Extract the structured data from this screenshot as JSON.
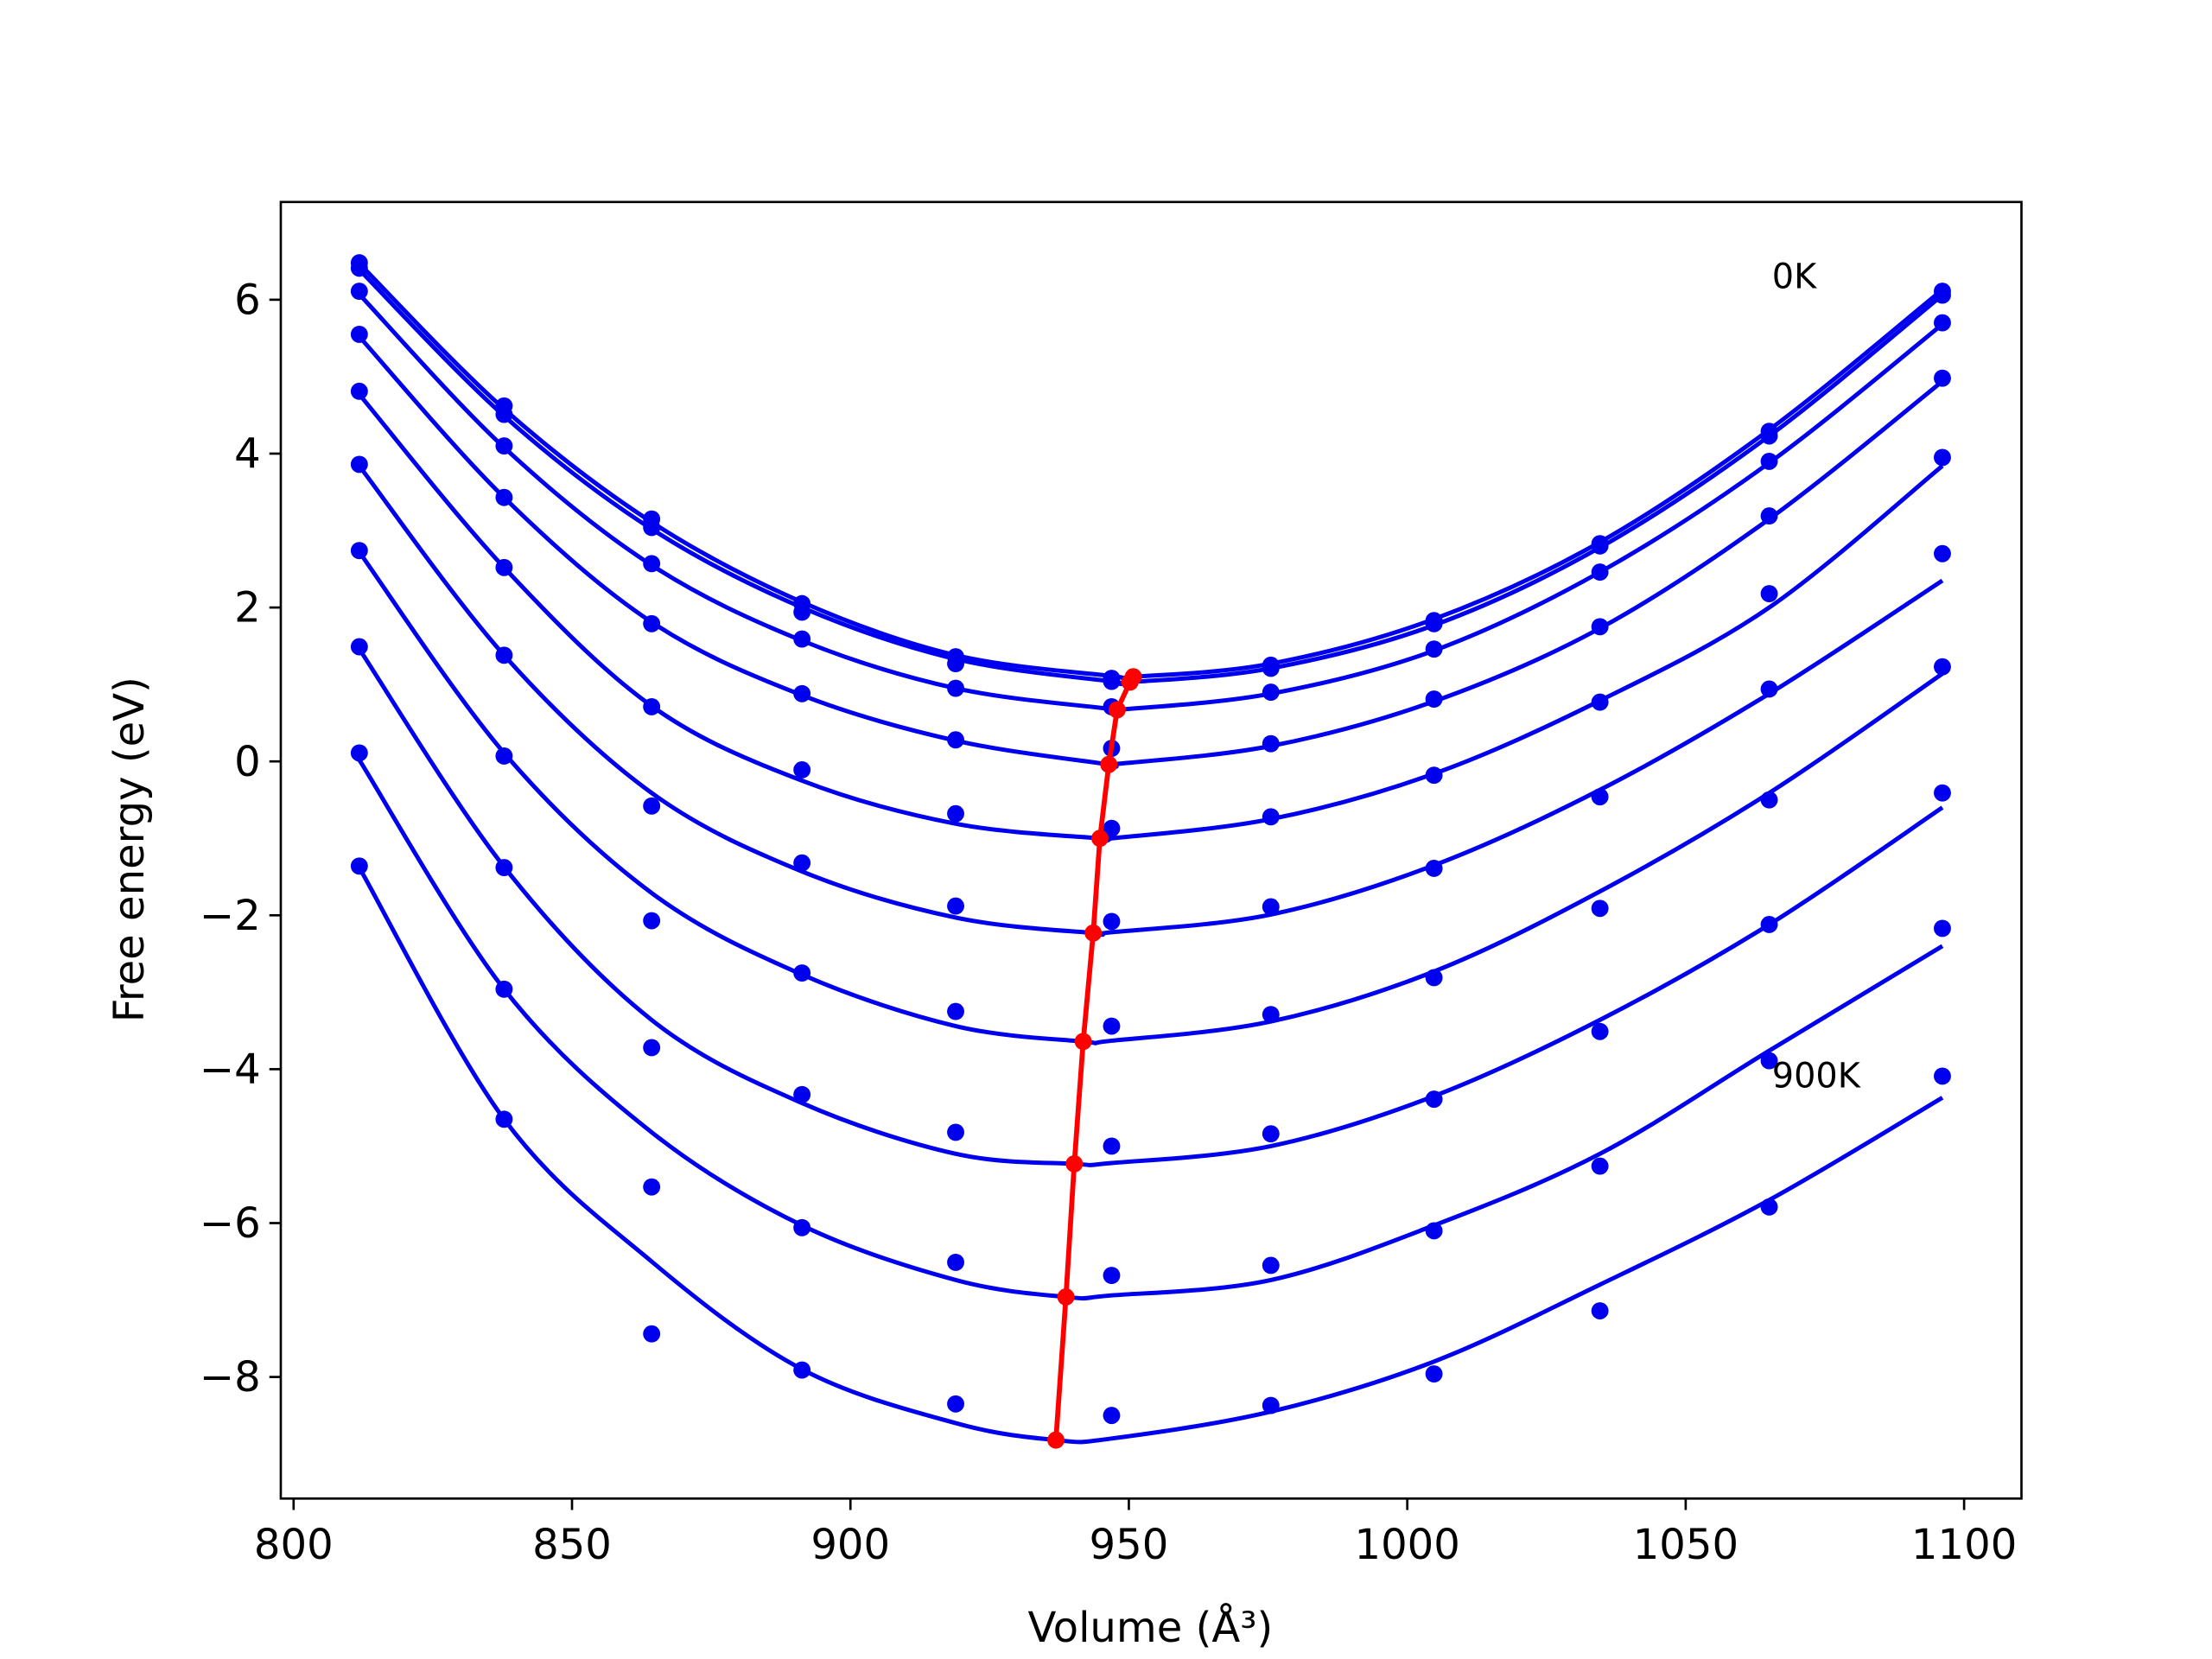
{
  "chart_data": {
    "type": "scatter",
    "xlabel": "Volume (Å³)",
    "ylabel": "Free energy (eV)",
    "xlim": [
      797.7,
      1110.3
    ],
    "ylim": [
      -9.58,
      7.27
    ],
    "xticks": [
      800,
      850,
      900,
      950,
      1000,
      1050,
      1100
    ],
    "yticks": [
      {
        "value": -8,
        "label": "−8"
      },
      {
        "value": -6,
        "label": "−6"
      },
      {
        "value": -4,
        "label": "−4"
      },
      {
        "value": -2,
        "label": "−2"
      },
      0,
      2,
      4,
      6
    ],
    "x": [
      811.8,
      837.8,
      864.3,
      891.3,
      918.9,
      946.9,
      975.5,
      1004.8,
      1034.6,
      1065.0,
      1096.1
    ],
    "series": [
      {
        "color": "#0000ee",
        "values": [
          6.48,
          4.62,
          3.15,
          2.05,
          1.36,
          1.08,
          1.25,
          1.83,
          2.83,
          4.29,
          6.11
        ]
      },
      {
        "color": "#0000ee",
        "values": [
          6.41,
          4.51,
          3.04,
          1.94,
          1.27,
          1.04,
          1.21,
          1.79,
          2.8,
          4.23,
          6.06
        ]
      },
      {
        "color": "#0000ee",
        "values": [
          6.11,
          4.1,
          2.57,
          1.59,
          0.95,
          0.71,
          0.9,
          1.46,
          2.46,
          3.9,
          5.7
        ]
      },
      {
        "color": "#0000ee",
        "values": [
          5.55,
          3.43,
          1.79,
          0.88,
          0.28,
          0.17,
          0.23,
          0.81,
          1.75,
          3.19,
          4.98
        ]
      },
      {
        "color": "#0000ee",
        "values": [
          4.81,
          2.52,
          0.71,
          -0.11,
          -0.68,
          -0.87,
          -0.72,
          -0.18,
          0.77,
          2.18,
          3.95
        ]
      },
      {
        "color": "#0000ee",
        "values": [
          3.86,
          1.38,
          -0.58,
          -1.32,
          -1.88,
          -2.08,
          -1.89,
          -1.39,
          -0.46,
          0.94,
          2.7
        ]
      },
      {
        "color": "#0000ee",
        "values": [
          2.74,
          0.07,
          -2.07,
          -2.75,
          -3.25,
          -3.44,
          -3.29,
          -2.81,
          -1.91,
          -0.5,
          1.23
        ]
      },
      {
        "color": "#0000ee",
        "values": [
          1.49,
          -1.38,
          -3.72,
          -4.33,
          -4.82,
          -5.0,
          -4.84,
          -4.39,
          -3.51,
          -2.12,
          -0.41
        ]
      },
      {
        "color": "#0000ee",
        "values": [
          0.11,
          -2.96,
          -5.53,
          -6.06,
          -6.51,
          -6.68,
          -6.55,
          -6.1,
          -5.26,
          -3.89,
          -2.17
        ]
      },
      {
        "color": "#0000ee",
        "values": [
          -1.36,
          -4.65,
          -7.44,
          -7.91,
          -8.35,
          -8.5,
          -8.37,
          -7.96,
          -7.14,
          -5.79,
          -4.09
        ]
      }
    ],
    "fits": [
      {
        "color": "#0000ee",
        "x": [
          811.8,
          837.8,
          864.3,
          891.3,
          918.9,
          946.9,
          950.8,
          975.5,
          1004.8,
          1034.6,
          1065.0,
          1096.1
        ],
        "values": [
          6.47,
          4.58,
          3.11,
          2.07,
          1.38,
          1.11,
          1.1,
          1.27,
          1.85,
          2.85,
          4.31,
          6.13
        ]
      },
      {
        "color": "#0000ee",
        "x": [
          811.8,
          837.8,
          864.3,
          891.3,
          918.9,
          946.9,
          950.2,
          975.5,
          1004.8,
          1034.6,
          1065.0,
          1096.1
        ],
        "values": [
          6.39,
          4.49,
          3.02,
          2.0,
          1.33,
          1.04,
          1.03,
          1.21,
          1.77,
          2.78,
          4.23,
          6.06
        ]
      },
      {
        "color": "#0000ee",
        "x": [
          811.8,
          837.8,
          864.3,
          891.3,
          918.9,
          946.9,
          947.9,
          975.5,
          1004.8,
          1034.6,
          1065.0,
          1096.1
        ],
        "values": [
          6.07,
          4.08,
          2.55,
          1.57,
          0.95,
          0.68,
          0.67,
          0.88,
          1.44,
          2.46,
          3.88,
          5.68
        ]
      },
      {
        "color": "#0000ee",
        "x": [
          811.8,
          837.8,
          864.3,
          891.3,
          918.9,
          946.4,
          946.9,
          975.5,
          1004.8,
          1034.6,
          1065.0,
          1096.1
        ],
        "values": [
          5.52,
          3.43,
          1.81,
          0.86,
          0.27,
          -0.04,
          -0.04,
          0.2,
          0.78,
          1.73,
          3.15,
          4.94
        ]
      },
      {
        "color": "#0000ee",
        "x": [
          811.8,
          837.8,
          864.3,
          891.3,
          918.9,
          944.8,
          946.9,
          975.5,
          1004.8,
          1034.6,
          1065.0,
          1096.1
        ],
        "values": [
          4.77,
          2.52,
          0.72,
          -0.25,
          -0.81,
          -1.0,
          -1.0,
          -0.75,
          -0.16,
          0.79,
          2.0,
          3.84
        ]
      },
      {
        "color": "#0000ee",
        "x": [
          811.8,
          837.8,
          864.3,
          891.3,
          918.9,
          943.6,
          946.9,
          975.5,
          1004.8,
          1034.6,
          1065.0,
          1096.1
        ],
        "values": [
          3.84,
          1.38,
          -0.41,
          -1.43,
          -2.03,
          -2.23,
          -2.22,
          -1.99,
          -1.35,
          -0.37,
          0.88,
          2.35
        ]
      },
      {
        "color": "#0000ee",
        "x": [
          811.8,
          837.8,
          864.3,
          891.3,
          918.9,
          941.8,
          946.9,
          975.5,
          1004.8,
          1034.6,
          1065.0,
          1096.1
        ],
        "values": [
          2.72,
          0.11,
          -1.71,
          -2.77,
          -3.44,
          -3.64,
          -3.63,
          -3.38,
          -2.73,
          -1.69,
          -0.41,
          1.14
        ]
      },
      {
        "color": "#0000ee",
        "x": [
          811.8,
          837.8,
          864.3,
          891.3,
          918.9,
          940.2,
          946.9,
          975.5,
          1004.8,
          1034.6,
          1065.0,
          1096.1
        ],
        "values": [
          1.46,
          -1.37,
          -3.36,
          -4.44,
          -5.1,
          -5.23,
          -5.22,
          -5.0,
          -4.35,
          -3.36,
          -2.12,
          -0.6
        ]
      },
      {
        "color": "#0000ee",
        "x": [
          811.8,
          837.8,
          864.3,
          891.3,
          918.9,
          938.7,
          946.9,
          975.5,
          1004.8,
          1034.6,
          1065.0,
          1096.1
        ],
        "values": [
          0.02,
          -2.96,
          -4.82,
          -6.03,
          -6.74,
          -6.96,
          -6.94,
          -6.74,
          -6.03,
          -5.1,
          -3.76,
          -2.4
        ]
      },
      {
        "color": "#0000ee",
        "x": [
          811.8,
          837.8,
          864.3,
          891.3,
          918.9,
          936.9,
          946.9,
          975.5,
          1004.8,
          1034.6,
          1065.0,
          1096.1
        ],
        "values": [
          -1.38,
          -4.65,
          -6.5,
          -7.9,
          -8.6,
          -8.82,
          -8.8,
          -8.45,
          -7.8,
          -6.8,
          -5.7,
          -4.37
        ]
      }
    ],
    "minima": {
      "color": "#ff0000",
      "x": [
        950.8,
        950.2,
        947.9,
        946.4,
        944.8,
        943.6,
        941.8,
        940.2,
        938.7,
        936.9
      ],
      "values": [
        1.1,
        1.03,
        0.67,
        -0.04,
        -1.0,
        -2.23,
        -3.64,
        -5.23,
        -6.96,
        -8.82
      ]
    },
    "annotations": [
      {
        "text": "0K",
        "x": 1065.5,
        "y": 6.32
      },
      {
        "text": "900K",
        "x": 1065.5,
        "y": -4.07
      }
    ]
  }
}
